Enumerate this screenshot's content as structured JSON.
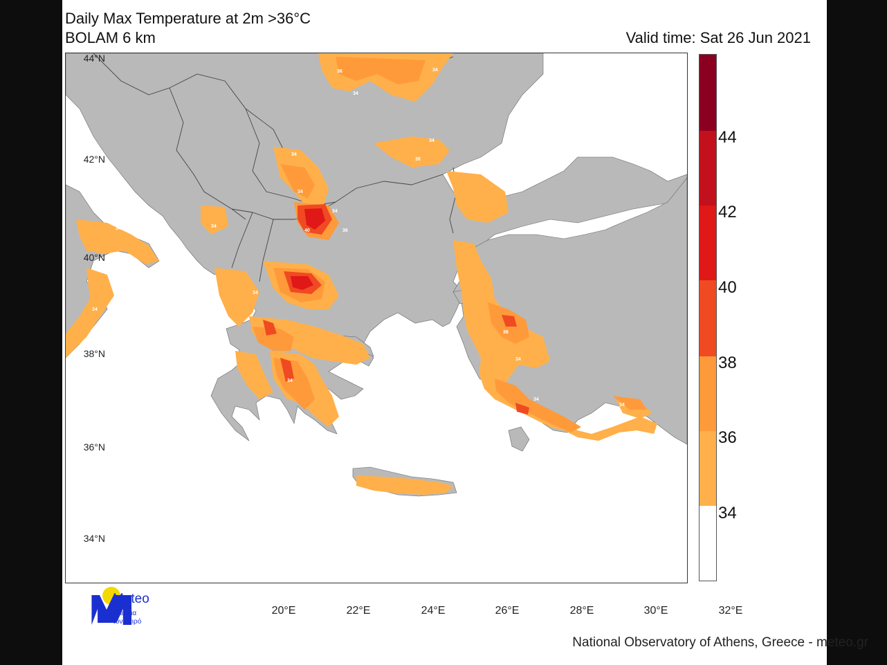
{
  "title": "Daily Max Temperature at 2m >36°C",
  "subtitle": "BOLAM 6 km",
  "valid_time": "Valid time: Sat 26 Jun 2021",
  "credit": "National Observatory of Athens, Greece - meteo.gr",
  "logo": {
    "name": "Meteo",
    "tagline_line1": "Όλα για",
    "tagline_line2": "τον καιρό",
    "colors": {
      "sun": "#f5d800",
      "mark": "#1a2fd0"
    }
  },
  "map": {
    "latitude_labels": [
      "44°N",
      "42°N",
      "40°N",
      "38°N",
      "36°N",
      "34°N"
    ],
    "longitude_labels": [
      "20°E",
      "22°E",
      "24°E",
      "26°E",
      "28°E",
      "30°E",
      "32°E"
    ],
    "land_color": "#b9b9b9",
    "sea_color": "#ffffff",
    "contour_labels": [
      "36",
      "34",
      "34",
      "34",
      "36",
      "34",
      "34",
      "34",
      "40",
      "34",
      "36",
      "34",
      "34",
      "34",
      "34",
      "36",
      "34",
      "34",
      "34"
    ]
  },
  "legend": {
    "ticks": [
      "44",
      "42",
      "40",
      "38",
      "36",
      "34"
    ],
    "bins": [
      {
        "from": 44,
        "to": 46,
        "color": "#8b0020"
      },
      {
        "from": 42,
        "to": 44,
        "color": "#c2101c"
      },
      {
        "from": 40,
        "to": 42,
        "color": "#e01818"
      },
      {
        "from": 38,
        "to": 40,
        "color": "#f04a22"
      },
      {
        "from": 36,
        "to": 38,
        "color": "#ff9a3a"
      },
      {
        "from": 34,
        "to": 36,
        "color": "#ffb04a"
      },
      {
        "from": 32,
        "to": 34,
        "color": "#ffffff"
      }
    ]
  }
}
